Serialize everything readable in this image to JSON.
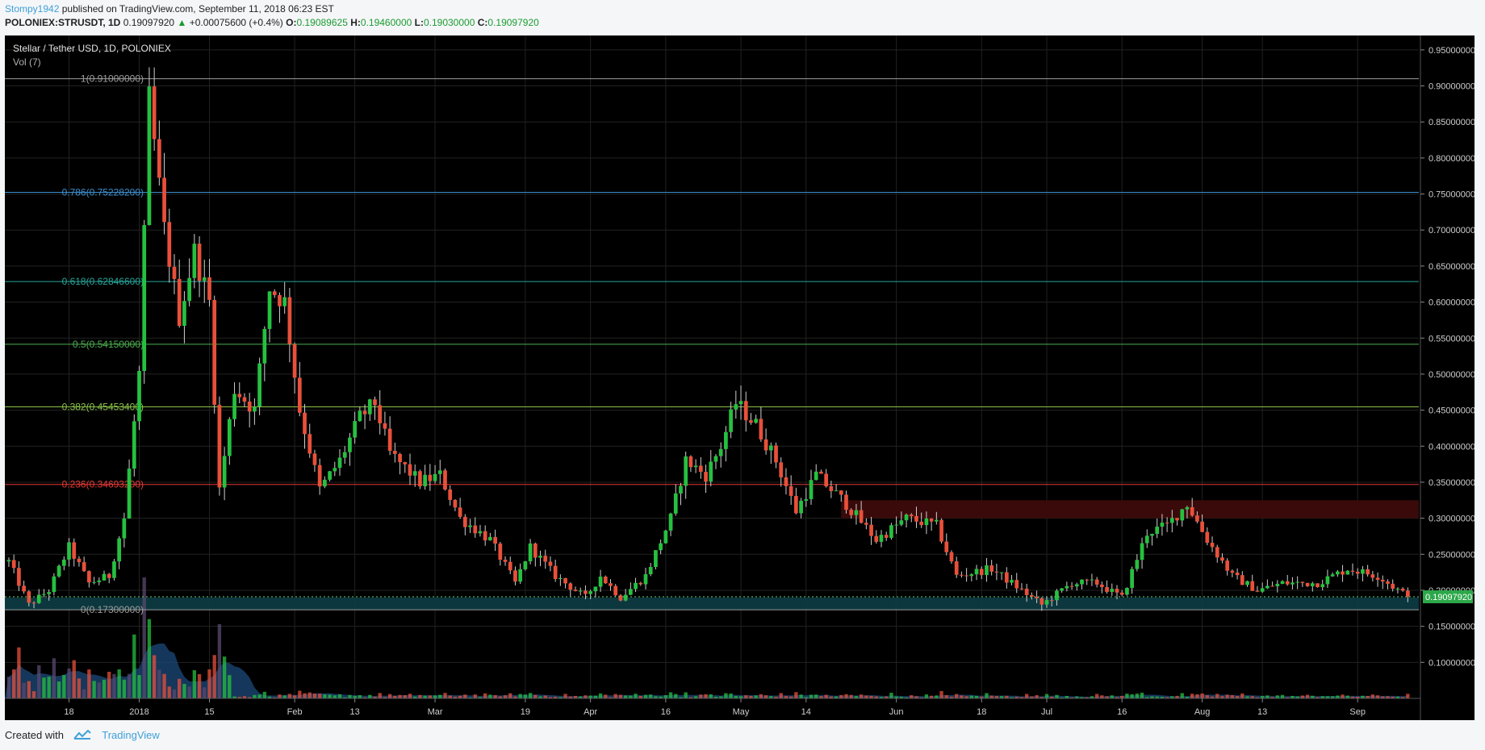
{
  "header": {
    "author": "Stompy1942",
    "published": "published on TradingView.com, September 11, 2018 06:23 EST",
    "symbol": "POLONIEX:STRUSDT, 1D",
    "last_price": "0.19097920",
    "change": "+0.00075600 (+0.4%)",
    "open_label": "O:",
    "open": "0.19089625",
    "high_label": "H:",
    "high": "0.19460000",
    "low_label": "L:",
    "low": "0.19030000",
    "close_label": "C:",
    "close": "0.19097920"
  },
  "footer": {
    "created_with": "Created with",
    "brand": "TradingView"
  },
  "chart_data": {
    "type": "candlestick",
    "title": "Stellar / Tether USD, 1D, POLONIEX",
    "indicator": "Vol (7)",
    "ylim": [
      0.05,
      0.97
    ],
    "y_ticks": [
      "0.95000000",
      "0.90000000",
      "0.85000000",
      "0.80000000",
      "0.75000000",
      "0.70000000",
      "0.65000000",
      "0.60000000",
      "0.55000000",
      "0.50000000",
      "0.45000000",
      "0.40000000",
      "0.35000000",
      "0.30000000",
      "0.25000000",
      "0.20000000",
      "0.15000000",
      "0.10000000"
    ],
    "x_ticks": [
      {
        "label": "18",
        "date": "2017-12-18"
      },
      {
        "label": "2018",
        "date": "2018-01-01"
      },
      {
        "label": "15",
        "date": "2018-01-15"
      },
      {
        "label": "Feb",
        "date": "2018-02-01"
      },
      {
        "label": "13",
        "date": "2018-02-13"
      },
      {
        "label": "Mar",
        "date": "2018-03-01"
      },
      {
        "label": "19",
        "date": "2018-03-19"
      },
      {
        "label": "Apr",
        "date": "2018-04-01"
      },
      {
        "label": "16",
        "date": "2018-04-16"
      },
      {
        "label": "May",
        "date": "2018-05-01"
      },
      {
        "label": "14",
        "date": "2018-05-14"
      },
      {
        "label": "Jun",
        "date": "2018-06-01"
      },
      {
        "label": "18",
        "date": "2018-06-18"
      },
      {
        "label": "Jul",
        "date": "2018-07-01"
      },
      {
        "label": "16",
        "date": "2018-07-16"
      },
      {
        "label": "Aug",
        "date": "2018-08-01"
      },
      {
        "label": "13",
        "date": "2018-08-13"
      },
      {
        "label": "Sep",
        "date": "2018-09-01"
      }
    ],
    "date_range": [
      "2017-12-06",
      "2018-09-11"
    ],
    "fib_levels": [
      {
        "label": "1(0.91000000)",
        "value": 0.91,
        "color": "#9e9e9e"
      },
      {
        "label": "0.786(0.75228200)",
        "value": 0.752282,
        "color": "#3a8fd0"
      },
      {
        "label": "0.618(0.62846600)",
        "value": 0.628466,
        "color": "#26a69a"
      },
      {
        "label": "0.5(0.54150000)",
        "value": 0.5415,
        "color": "#4caf50"
      },
      {
        "label": "0.382(0.45453400)",
        "value": 0.454534,
        "color": "#8bc34a"
      },
      {
        "label": "0.236(0.34693200)",
        "value": 0.346932,
        "color": "#e53935"
      },
      {
        "label": "0(0.17300000)",
        "value": 0.173,
        "color": "#9e9e9e"
      }
    ],
    "resistance_zone": {
      "from": "2018-05-21",
      "low": 0.3,
      "high": 0.325,
      "color": "#3a0a0a"
    },
    "support_zone": {
      "low": 0.173,
      "high": 0.19,
      "color": "#0d3d45"
    },
    "last_price": 0.1909792,
    "last_price_label": "0.19097920",
    "colors": {
      "up": "#26c040",
      "down": "#e8503a",
      "frame": "#000000",
      "grid": "#222222",
      "axis_text": "#cfcfcf",
      "volume_area": "#1c4a7a",
      "volume_neutral": "#5a4a70"
    },
    "anchors": [
      [
        "2017-12-06",
        0.24
      ],
      [
        "2017-12-10",
        0.18
      ],
      [
        "2017-12-14",
        0.2
      ],
      [
        "2017-12-18",
        0.26
      ],
      [
        "2017-12-22",
        0.21
      ],
      [
        "2017-12-26",
        0.22
      ],
      [
        "2017-12-29",
        0.3
      ],
      [
        "2018-01-01",
        0.5
      ],
      [
        "2018-01-03",
        0.88
      ],
      [
        "2018-01-06",
        0.7
      ],
      [
        "2018-01-09",
        0.58
      ],
      [
        "2018-01-12",
        0.67
      ],
      [
        "2018-01-15",
        0.6
      ],
      [
        "2018-01-17",
        0.34
      ],
      [
        "2018-01-20",
        0.48
      ],
      [
        "2018-01-24",
        0.45
      ],
      [
        "2018-01-27",
        0.62
      ],
      [
        "2018-01-30",
        0.6
      ],
      [
        "2018-02-02",
        0.45
      ],
      [
        "2018-02-06",
        0.34
      ],
      [
        "2018-02-10",
        0.38
      ],
      [
        "2018-02-14",
        0.44
      ],
      [
        "2018-02-17",
        0.46
      ],
      [
        "2018-02-20",
        0.39
      ],
      [
        "2018-02-26",
        0.35
      ],
      [
        "2018-03-02",
        0.36
      ],
      [
        "2018-03-06",
        0.3
      ],
      [
        "2018-03-12",
        0.27
      ],
      [
        "2018-03-17",
        0.21
      ],
      [
        "2018-03-20",
        0.26
      ],
      [
        "2018-03-25",
        0.22
      ],
      [
        "2018-03-31",
        0.19
      ],
      [
        "2018-04-03",
        0.22
      ],
      [
        "2018-04-07",
        0.19
      ],
      [
        "2018-04-12",
        0.22
      ],
      [
        "2018-04-17",
        0.3
      ],
      [
        "2018-04-20",
        0.38
      ],
      [
        "2018-04-24",
        0.36
      ],
      [
        "2018-04-27",
        0.4
      ],
      [
        "2018-04-30",
        0.46
      ],
      [
        "2018-05-04",
        0.43
      ],
      [
        "2018-05-08",
        0.38
      ],
      [
        "2018-05-12",
        0.31
      ],
      [
        "2018-05-16",
        0.36
      ],
      [
        "2018-05-22",
        0.32
      ],
      [
        "2018-05-28",
        0.27
      ],
      [
        "2018-06-03",
        0.3
      ],
      [
        "2018-06-09",
        0.29
      ],
      [
        "2018-06-13",
        0.22
      ],
      [
        "2018-06-20",
        0.23
      ],
      [
        "2018-06-26",
        0.2
      ],
      [
        "2018-06-30",
        0.18
      ],
      [
        "2018-07-06",
        0.21
      ],
      [
        "2018-07-11",
        0.21
      ],
      [
        "2018-07-16",
        0.19
      ],
      [
        "2018-07-21",
        0.28
      ],
      [
        "2018-07-25",
        0.29
      ],
      [
        "2018-07-29",
        0.32
      ],
      [
        "2018-08-02",
        0.27
      ],
      [
        "2018-08-07",
        0.22
      ],
      [
        "2018-08-12",
        0.2
      ],
      [
        "2018-08-17",
        0.21
      ],
      [
        "2018-08-24",
        0.21
      ],
      [
        "2018-08-30",
        0.23
      ],
      [
        "2018-09-05",
        0.22
      ],
      [
        "2018-09-11",
        0.191
      ]
    ]
  }
}
